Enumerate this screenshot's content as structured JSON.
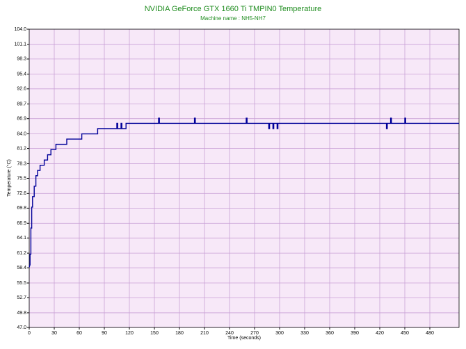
{
  "chart_data": {
    "type": "line",
    "title": "NVIDIA GeForce GTX 1660 Ti TMPIN0 Temperature",
    "subtitle": "Machine name : NH5-NH7",
    "x_label": "Time (seconds)",
    "y_label": "Temperature (°C)",
    "xlim": [
      0,
      515
    ],
    "ylim": [
      47,
      104
    ],
    "xticks": [
      0,
      30,
      60,
      90,
      120,
      150,
      180,
      210,
      240,
      270,
      300,
      330,
      360,
      390,
      420,
      450,
      480
    ],
    "yticks": [
      {
        "value": 47,
        "label": "47.0"
      },
      49.8,
      52.7,
      55.5,
      58.4,
      61.2,
      64.1,
      66.9,
      69.8,
      72.6,
      75.5,
      78.3,
      81.2,
      {
        "value": 84,
        "label": "84.0"
      },
      86.9,
      89.7,
      92.6,
      95.4,
      98.3,
      101.1,
      {
        "value": 104,
        "label": "104.0"
      }
    ],
    "grid": true,
    "background": "#f7e8f8",
    "series": [
      {
        "color": "#000099",
        "x": [
          0,
          1,
          1,
          2,
          2,
          3,
          3,
          4,
          4,
          6,
          6,
          8,
          8,
          10,
          10,
          13,
          13,
          18,
          18,
          22,
          22,
          26,
          26,
          32,
          32,
          45,
          45,
          63,
          63,
          82,
          82,
          105,
          105,
          106,
          106,
          110,
          110,
          111,
          111,
          116,
          116,
          155,
          155,
          156,
          156,
          198,
          198,
          199,
          199,
          260,
          260,
          261,
          261,
          287,
          287,
          288,
          288,
          292,
          292,
          293,
          293,
          297,
          297,
          298,
          298,
          428,
          428,
          429,
          429,
          433,
          433,
          434,
          434,
          450,
          450,
          451,
          451,
          515
        ],
        "values": [
          58.5,
          59,
          61,
          61,
          66,
          66,
          70,
          70,
          72,
          72,
          74,
          74,
          76,
          76,
          77,
          77,
          78,
          78,
          79,
          79,
          80,
          80,
          81,
          81,
          82,
          82,
          83,
          83,
          84,
          84,
          85,
          85,
          86,
          86,
          85,
          85,
          86,
          86,
          85,
          85,
          86,
          86,
          87,
          87,
          86,
          86,
          87,
          87,
          86,
          86,
          87,
          87,
          86,
          86,
          85,
          85,
          86,
          86,
          85,
          85,
          86,
          86,
          85,
          85,
          86,
          86,
          85,
          85,
          86,
          86,
          87,
          87,
          86,
          86,
          87,
          87,
          86,
          86
        ]
      }
    ]
  }
}
